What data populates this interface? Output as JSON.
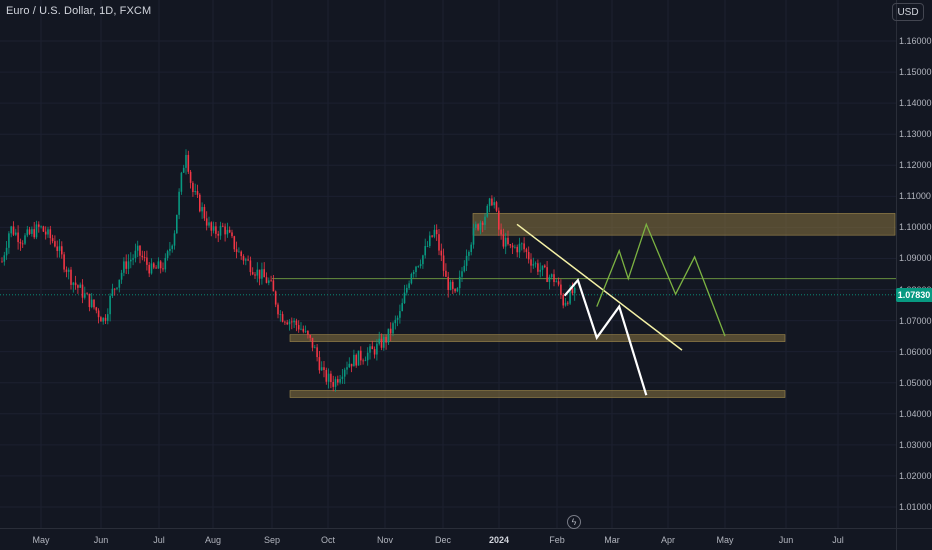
{
  "header": {
    "title": "Euro / U.S. Dollar, 1D, FXCM",
    "currency_button": "USD"
  },
  "price_axis": {
    "labels": [
      "1.16000",
      "1.15000",
      "1.14000",
      "1.13000",
      "1.12000",
      "1.11000",
      "1.10000",
      "1.09000",
      "1.08000",
      "1.07000",
      "1.06000",
      "1.05000",
      "1.04000",
      "1.03000",
      "1.02000",
      "1.01000"
    ],
    "last_price": "1.07830"
  },
  "time_axis": {
    "labels": [
      "May",
      "Jun",
      "Jul",
      "Aug",
      "Sep",
      "Oct",
      "Nov",
      "Dec",
      "2024",
      "Feb",
      "Mar",
      "Apr",
      "May",
      "Jun",
      "Jul"
    ]
  },
  "flash_icon": "lightning-icon",
  "chart_data": {
    "type": "candlestick",
    "instrument": "Euro / U.S. Dollar",
    "interval": "1D",
    "source": "FXCM",
    "ylim": [
      1.004,
      1.166
    ],
    "last_price": 1.0783,
    "colors": {
      "up": "#089981",
      "down": "#f23645",
      "background": "#131722",
      "zone": "#8a7440",
      "projection_white": "#ffffff",
      "projection_green": "#7cb342",
      "trendline": "#f5f2a6",
      "level_line": "#8bc34a"
    },
    "monthly_path": [
      {
        "month": "Apr",
        "close": 1.098
      },
      {
        "month": "May",
        "close": 1.075
      },
      {
        "month": "Jun",
        "close": 1.087
      },
      {
        "month": "Jul",
        "close": 1.102
      },
      {
        "month": "Aug",
        "close": 1.084
      },
      {
        "month": "Sep",
        "close": 1.057
      },
      {
        "month": "Oct",
        "close": 1.058
      },
      {
        "month": "Nov",
        "close": 1.089
      },
      {
        "month": "Dec",
        "close": 1.104
      },
      {
        "month": "2024",
        "close": 1.082
      },
      {
        "month": "Feb",
        "close": 1.0783
      }
    ],
    "key_points": [
      {
        "label": "high",
        "value": 1.1275
      },
      {
        "label": "low",
        "value": 1.0448
      }
    ],
    "zones": [
      {
        "low": 1.0975,
        "high": 1.1045
      },
      {
        "low": 1.0635,
        "high": 1.0655
      },
      {
        "low": 1.0455,
        "high": 1.0475
      }
    ],
    "horizontal_level": 1.0835,
    "trendline": [
      {
        "date": "2024-01-01",
        "price": 1.101
      },
      {
        "date": "2024-04-01",
        "price": 1.0605
      }
    ],
    "projection_white": [
      {
        "date": "2024-02-05",
        "price": 1.078
      },
      {
        "date": "2024-02-12",
        "price": 1.083
      },
      {
        "date": "2024-02-22",
        "price": 1.0645
      },
      {
        "date": "2024-03-05",
        "price": 1.0745
      },
      {
        "date": "2024-03-20",
        "price": 1.046
      }
    ],
    "projection_green": [
      {
        "date": "2024-02-22",
        "price": 1.0745
      },
      {
        "date": "2024-03-05",
        "price": 1.0925
      },
      {
        "date": "2024-03-10",
        "price": 1.0835
      },
      {
        "date": "2024-03-20",
        "price": 1.101
      },
      {
        "date": "2024-04-05",
        "price": 1.0785
      },
      {
        "date": "2024-04-15",
        "price": 1.0905
      },
      {
        "date": "2024-05-01",
        "price": 1.065
      }
    ]
  }
}
